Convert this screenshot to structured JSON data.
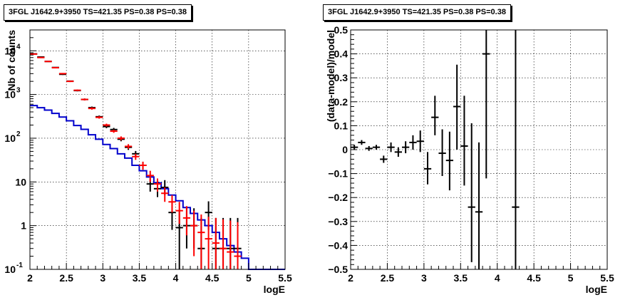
{
  "panels": {
    "left": {
      "title": "3FGL J1642.9+3950 TS=421.35 PS=0.38 PS=0.38"
    },
    "right": {
      "title": "3FGL J1642.9+3950 TS=421.35 PS=0.38 PS=0.38"
    }
  },
  "chart_data": [
    {
      "type": "line",
      "title": "3FGL J1642.9+3950 TS=421.35 PS=0.38 PS=0.38",
      "xlabel": "logE",
      "ylabel": "Nb of counts",
      "xlim": [
        2,
        5.5
      ],
      "ylim": [
        0.1,
        30000
      ],
      "yscale": "log",
      "grid": true,
      "x_ticks": [
        "2",
        "2.5",
        "3",
        "3.5",
        "4",
        "4.5",
        "5",
        "5.5"
      ],
      "y_ticks": [
        "10^-1",
        "1",
        "10",
        "10^2",
        "10^3",
        "10^4"
      ],
      "colors": {
        "data": "#000000",
        "model_total": "#ff0000",
        "model_source": "#0000cc"
      },
      "series": [
        {
          "kind": "points",
          "x": [
            2.05,
            2.15,
            2.25,
            2.35,
            2.45,
            2.55,
            2.65,
            2.75,
            2.85,
            2.95,
            3.05,
            3.15,
            3.25,
            3.35,
            3.45,
            3.55,
            3.65,
            3.75,
            3.85,
            3.95,
            4.05,
            4.15,
            4.25,
            4.35,
            4.45,
            4.55,
            4.65,
            4.75,
            4.85
          ],
          "y": [
            8500,
            7200,
            5700,
            4150,
            2900,
            2020,
            1230,
            770,
            500,
            310,
            185,
            158,
            95,
            62,
            44,
            24,
            9,
            7,
            7.5,
            2,
            0.9,
            1,
            1,
            0.3,
            2,
            0.3,
            0.3,
            0.3,
            0.3
          ],
          "ylo": [
            8400,
            7100,
            5600,
            4050,
            2800,
            1950,
            1180,
            730,
            470,
            290,
            170,
            145,
            85,
            54,
            37,
            19,
            6,
            4.5,
            5,
            0.8,
            0.1,
            0.3,
            0.3,
            0.1,
            0.8,
            0.1,
            0.1,
            0.1,
            0.1
          ],
          "yhi": [
            8600,
            7300,
            5800,
            4250,
            3000,
            2090,
            1280,
            810,
            530,
            330,
            200,
            172,
            105,
            70,
            51,
            29,
            12,
            10.5,
            11,
            3.5,
            2.2,
            2.5,
            2.5,
            1.5,
            3.6,
            1.5,
            1.5,
            1.5,
            1.5
          ]
        },
        {
          "kind": "points",
          "x": [
            2.05,
            2.15,
            2.25,
            2.35,
            2.45,
            2.55,
            2.65,
            2.75,
            2.85,
            2.95,
            3.05,
            3.15,
            3.25,
            3.35,
            3.45,
            3.55,
            3.65,
            3.75,
            3.85,
            3.95,
            4.05,
            4.15,
            4.25,
            4.35,
            4.45,
            4.55,
            4.65,
            4.75,
            4.85
          ],
          "y": [
            8400,
            7000,
            5700,
            4100,
            3000,
            2000,
            1250,
            770,
            480,
            300,
            200,
            145,
            100,
            65,
            38,
            24,
            14,
            9,
            5.5,
            3.5,
            2.2,
            1.5,
            1,
            0.7,
            0.5,
            0.4,
            0.3,
            0.25,
            0.2
          ],
          "ylo": [
            8300,
            6900,
            5600,
            4000,
            2900,
            1930,
            1200,
            730,
            450,
            280,
            185,
            133,
            90,
            57,
            32,
            19,
            10,
            6,
            3.5,
            2,
            1.1,
            0.6,
            0.2,
            0.1,
            0.1,
            0.1,
            0.1,
            0.1,
            0.1
          ],
          "yhi": [
            8500,
            7100,
            5800,
            4200,
            3100,
            2070,
            1300,
            810,
            510,
            320,
            215,
            157,
            110,
            73,
            44,
            29,
            18,
            12,
            7.5,
            5,
            3.5,
            2.8,
            2.2,
            1.8,
            1.6,
            1.5,
            1.4,
            1.3,
            1.2
          ]
        },
        {
          "kind": "step",
          "edges": [
            2.0,
            2.1,
            2.2,
            2.3,
            2.4,
            2.5,
            2.6,
            2.7,
            2.8,
            2.9,
            3.0,
            3.1,
            3.2,
            3.3,
            3.4,
            3.5,
            3.6,
            3.7,
            3.8,
            3.9,
            4.0,
            4.1,
            4.2,
            4.3,
            4.4,
            4.5,
            4.6,
            4.7,
            4.8,
            4.9,
            5.0,
            5.5
          ],
          "y": [
            560,
            500,
            440,
            370,
            305,
            250,
            195,
            160,
            120,
            95,
            72,
            58,
            44,
            35,
            24,
            18,
            13,
            9.5,
            7,
            5,
            3.7,
            2.6,
            1.9,
            1.35,
            1,
            0.7,
            0.5,
            0.35,
            0.25,
            0.18,
            0.1
          ]
        }
      ]
    },
    {
      "type": "scatter",
      "title": "3FGL J1642.9+3950 TS=421.35 PS=0.38 PS=0.38",
      "xlabel": "logE",
      "ylabel": "(data-model)/model",
      "xlim": [
        2,
        5.5
      ],
      "ylim": [
        -0.5,
        0.5
      ],
      "grid": true,
      "x_ticks": [
        "2",
        "2.5",
        "3",
        "3.5",
        "4",
        "4.5",
        "5",
        "5.5"
      ],
      "y_ticks": [
        "−0.5",
        "−0.4",
        "−0.3",
        "−0.2",
        "−0.1",
        "0",
        "0.1",
        "0.2",
        "0.3",
        "0.4",
        "0.5"
      ],
      "series": [
        {
          "kind": "points",
          "x": [
            2.05,
            2.15,
            2.25,
            2.35,
            2.45,
            2.55,
            2.65,
            2.75,
            2.85,
            2.95,
            3.05,
            3.15,
            3.25,
            3.35,
            3.45,
            3.55,
            3.65,
            3.75,
            3.85,
            4.25
          ],
          "y": [
            0.01,
            0.03,
            0.005,
            0.01,
            -0.04,
            0.01,
            -0.01,
            0.01,
            0.03,
            0.035,
            -0.08,
            0.135,
            -0.015,
            -0.045,
            0.18,
            0.015,
            -0.24,
            -0.26,
            0.4,
            -0.24
          ],
          "ylo": [
            0.0,
            0.02,
            -0.005,
            0.0,
            -0.055,
            -0.01,
            -0.03,
            -0.015,
            0.0,
            -0.01,
            -0.145,
            0.06,
            -0.11,
            -0.17,
            0.0,
            -0.15,
            -0.47,
            -0.5,
            -0.12,
            -0.5
          ],
          "yhi": [
            0.02,
            0.04,
            0.015,
            0.02,
            -0.025,
            0.03,
            0.01,
            0.035,
            0.06,
            0.08,
            -0.01,
            0.225,
            0.085,
            0.075,
            0.355,
            0.225,
            0.11,
            0.03,
            0.5,
            0.5
          ]
        }
      ]
    }
  ]
}
